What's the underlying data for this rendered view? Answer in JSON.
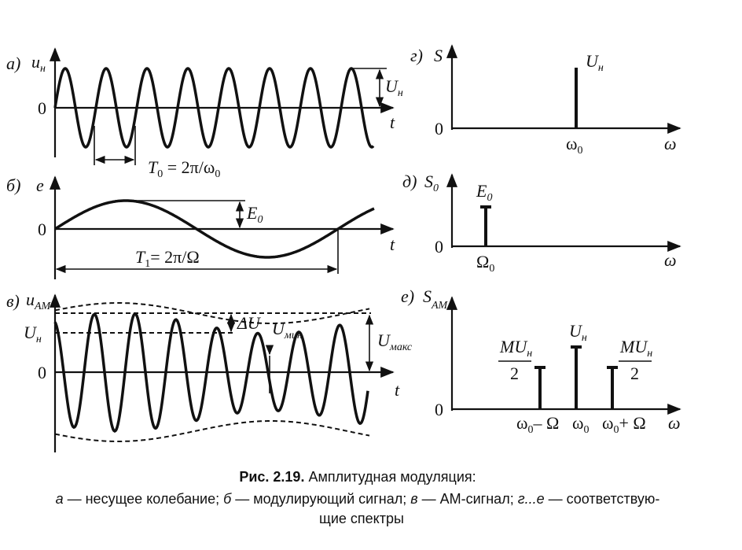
{
  "panels": {
    "a": {
      "label": "а)",
      "y_axis": {
        "text": "u",
        "sub": "н"
      },
      "zero": "0",
      "x_axis": "t",
      "amplitude": {
        "text": "U",
        "sub": "н"
      },
      "period": {
        "text": "T",
        "sub": "0",
        "rest": " = 2π/ω",
        "rest_sub": "0"
      }
    },
    "b": {
      "label": "б)",
      "y_axis": "e",
      "zero": "0",
      "x_axis": "t",
      "amplitude": {
        "text": "E",
        "sub": "0"
      },
      "period": {
        "text": "T",
        "sub": "1",
        "rest": "= 2π/Ω"
      }
    },
    "c": {
      "label": "в)",
      "y_axis": {
        "text": "u",
        "sub": "AM"
      },
      "zero": "0",
      "x_axis": "t",
      "carrier": {
        "text": "U",
        "sub": "н"
      },
      "delta": "ΔU",
      "min": {
        "text": "U",
        "sub": "мин"
      },
      "max": {
        "text": "U",
        "sub": "макс"
      }
    },
    "d": {
      "label": "г)",
      "y_axis": "S",
      "zero": "0",
      "x_axis": "ω",
      "line_label": {
        "text": "U",
        "sub": "н"
      },
      "freq": {
        "text": "ω",
        "sub": "0"
      }
    },
    "e": {
      "label": "д)",
      "y_axis": {
        "text": "S",
        "sub": "0"
      },
      "zero": "0",
      "x_axis": "ω",
      "line_label": {
        "text": "E",
        "sub": "0"
      },
      "freq": {
        "text": "Ω",
        "sub": "0"
      }
    },
    "f": {
      "label": "е)",
      "y_axis": {
        "text": "S",
        "sub": "AM"
      },
      "zero": "0",
      "x_axis": "ω",
      "side_label": {
        "num": "MU",
        "num_sub": "н",
        "den": "2"
      },
      "center_label": {
        "text": "U",
        "sub": "н"
      },
      "freqs": [
        {
          "text": "ω",
          "sub": "0",
          "rest": "– Ω"
        },
        {
          "text": "ω",
          "sub": "0"
        },
        {
          "text": "ω",
          "sub": "0",
          "rest": "+ Ω"
        }
      ]
    }
  },
  "caption": {
    "title_bold": "Рис. 2.19.",
    "title": " Амплитудная модуляция:",
    "line2": [
      {
        "text": "а",
        "italic": true
      },
      {
        "text": " — несущее колебание; ",
        "italic": false
      },
      {
        "text": "б",
        "italic": true
      },
      {
        "text": " — модулирующий сигнал; ",
        "italic": false
      },
      {
        "text": "в",
        "italic": true
      },
      {
        "text": " — АМ-сигнал; ",
        "italic": false
      },
      {
        "text": "г...е",
        "italic": true
      },
      {
        "text": " — соответствую-",
        "italic": false
      }
    ],
    "line3": "щие спектры"
  }
}
